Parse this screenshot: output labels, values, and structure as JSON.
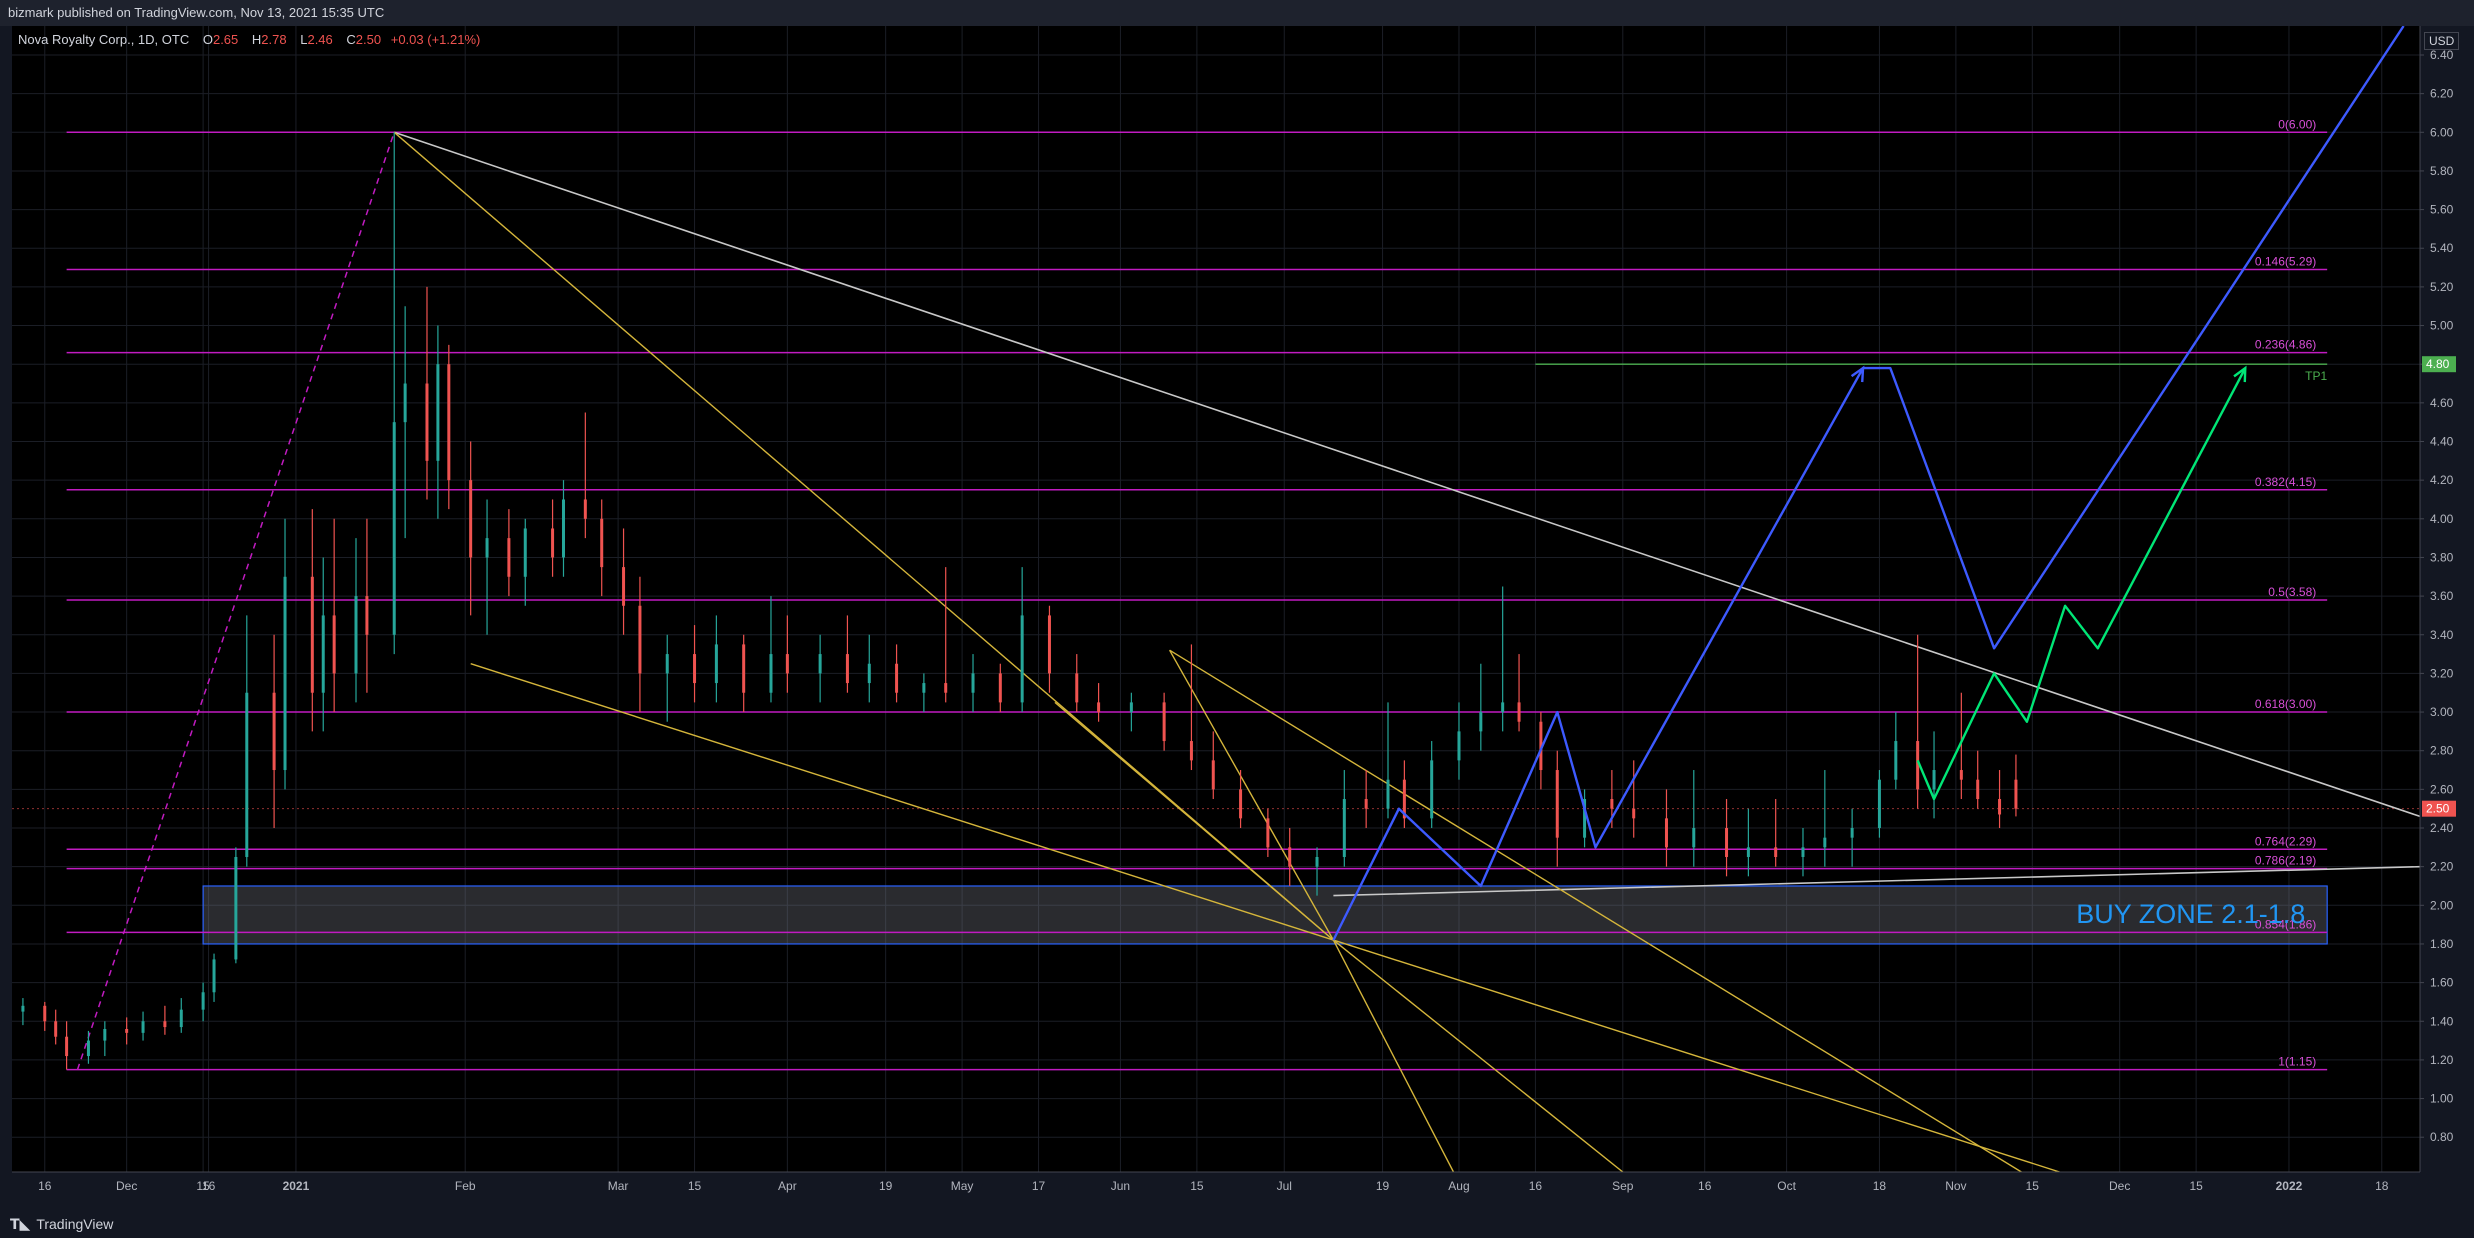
{
  "header": {
    "publish_text": "bizmark published on TradingView.com, Nov 13, 2021 15:35 UTC"
  },
  "legend": {
    "symbol": "Nova Royalty Corp., 1D, OTC",
    "open_label": "O",
    "open": "2.65",
    "high_label": "H",
    "high": "2.78",
    "low_label": "L",
    "low": "2.46",
    "close_label": "C",
    "close": "2.50",
    "change": "+0.03 (+1.21%)"
  },
  "currency": "USD",
  "brand": "TradingView",
  "colors": {
    "up": "#26a69a",
    "down": "#ef5350",
    "fib": "#c11bc1",
    "fib_text": "#d84fd8",
    "buy_zone_text": "#2196f3",
    "tp_green": "#4caf50",
    "blue_path": "#3d5afe",
    "green_path": "#00e676",
    "yellow": "#d4b53b",
    "white_line": "#c8c8c8"
  },
  "chart_data": {
    "type": "candlestick",
    "title": "Nova Royalty Corp., 1D, OTC",
    "y_axis_ticks": [
      6.4,
      6.2,
      6.0,
      5.8,
      5.6,
      5.4,
      5.2,
      5.0,
      4.8,
      4.6,
      4.4,
      4.2,
      4.0,
      3.8,
      3.6,
      3.4,
      3.2,
      3.0,
      2.8,
      2.6,
      2.4,
      2.2,
      2.0,
      1.8,
      1.6,
      1.4,
      1.2,
      1.0,
      0.8
    ],
    "x_axis_ticks": [
      {
        "label": "16",
        "date": "2020-11-16"
      },
      {
        "label": "Dec",
        "date": "2020-12-01"
      },
      {
        "label": "15",
        "date": "2020-12-15"
      },
      {
        "label": "16",
        "date": "2020-12-16"
      },
      {
        "label": "2021",
        "date": "2021-01-01"
      },
      {
        "label": "Feb",
        "date": "2021-02-01"
      },
      {
        "label": "Mar",
        "date": "2021-03-01"
      },
      {
        "label": "15",
        "date": "2021-03-15"
      },
      {
        "label": "Apr",
        "date": "2021-04-01"
      },
      {
        "label": "19",
        "date": "2021-04-19"
      },
      {
        "label": "May",
        "date": "2021-05-03"
      },
      {
        "label": "17",
        "date": "2021-05-17"
      },
      {
        "label": "Jun",
        "date": "2021-06-01"
      },
      {
        "label": "15",
        "date": "2021-06-15"
      },
      {
        "label": "Jul",
        "date": "2021-07-01"
      },
      {
        "label": "19",
        "date": "2021-07-19"
      },
      {
        "label": "Aug",
        "date": "2021-08-02"
      },
      {
        "label": "16",
        "date": "2021-08-16"
      },
      {
        "label": "Sep",
        "date": "2021-09-01"
      },
      {
        "label": "16",
        "date": "2021-09-16"
      },
      {
        "label": "Oct",
        "date": "2021-10-01"
      },
      {
        "label": "18",
        "date": "2021-10-18"
      },
      {
        "label": "Nov",
        "date": "2021-11-01"
      },
      {
        "label": "15",
        "date": "2021-11-15"
      },
      {
        "label": "Dec",
        "date": "2021-12-01"
      },
      {
        "label": "15",
        "date": "2021-12-15"
      },
      {
        "label": "2022",
        "date": "2022-01-01"
      },
      {
        "label": "18",
        "date": "2022-01-18"
      }
    ],
    "x_range": [
      "2020-11-10",
      "2022-01-25"
    ],
    "y_range": [
      0.62,
      6.55
    ],
    "current_price": {
      "label": "2.50",
      "value": 2.5
    },
    "tp_price": {
      "label": "4.80",
      "value": 4.8
    },
    "tp_text": "TP1",
    "fib_levels": [
      {
        "label": "0(6.00)",
        "value": 6.0
      },
      {
        "label": "0.146(5.29)",
        "value": 5.29
      },
      {
        "label": "0.236(4.86)",
        "value": 4.86
      },
      {
        "label": "0.382(4.15)",
        "value": 4.15
      },
      {
        "label": "0.5(3.58)",
        "value": 3.58
      },
      {
        "label": "0.618(3.00)",
        "value": 3.0
      },
      {
        "label": "0.764(2.29)",
        "value": 2.29
      },
      {
        "label": "0.786(2.19)",
        "value": 2.19
      },
      {
        "label": "0.854(1.86)",
        "value": 1.86
      },
      {
        "label": "1(1.15)",
        "value": 1.15
      }
    ],
    "buy_zone": {
      "label": "BUY ZONE 2.1-1.8",
      "top": 2.1,
      "bottom": 1.8,
      "start": "2020-12-15",
      "end": "2022-01-08"
    },
    "candles": [
      [
        "2020-11-12",
        1.45,
        1.52,
        1.38,
        1.48
      ],
      [
        "2020-11-16",
        1.48,
        1.5,
        1.35,
        1.4
      ],
      [
        "2020-11-18",
        1.4,
        1.46,
        1.28,
        1.32
      ],
      [
        "2020-11-20",
        1.32,
        1.4,
        1.15,
        1.22
      ],
      [
        "2020-11-24",
        1.22,
        1.35,
        1.18,
        1.3
      ],
      [
        "2020-11-27",
        1.3,
        1.4,
        1.22,
        1.36
      ],
      [
        "2020-12-01",
        1.36,
        1.42,
        1.28,
        1.34
      ],
      [
        "2020-12-04",
        1.34,
        1.45,
        1.3,
        1.4
      ],
      [
        "2020-12-08",
        1.4,
        1.48,
        1.33,
        1.37
      ],
      [
        "2020-12-11",
        1.37,
        1.52,
        1.34,
        1.46
      ],
      [
        "2020-12-15",
        1.46,
        1.6,
        1.4,
        1.55
      ],
      [
        "2020-12-17",
        1.55,
        1.75,
        1.5,
        1.72
      ],
      [
        "2020-12-21",
        1.72,
        2.3,
        1.7,
        2.25
      ],
      [
        "2020-12-23",
        2.25,
        3.5,
        2.2,
        3.1
      ],
      [
        "2020-12-28",
        3.1,
        3.4,
        2.4,
        2.7
      ],
      [
        "2020-12-30",
        2.7,
        4.0,
        2.6,
        3.7
      ],
      [
        "2021-01-04",
        3.7,
        4.05,
        2.9,
        3.1
      ],
      [
        "2021-01-06",
        3.1,
        3.8,
        2.9,
        3.5
      ],
      [
        "2021-01-08",
        3.5,
        4.0,
        3.0,
        3.2
      ],
      [
        "2021-01-12",
        3.2,
        3.9,
        3.05,
        3.6
      ],
      [
        "2021-01-14",
        3.6,
        4.0,
        3.1,
        3.4
      ],
      [
        "2021-01-19",
        3.4,
        6.0,
        3.3,
        4.5
      ],
      [
        "2021-01-21",
        4.5,
        5.1,
        3.9,
        4.7
      ],
      [
        "2021-01-25",
        4.7,
        5.2,
        4.1,
        4.3
      ],
      [
        "2021-01-27",
        4.3,
        5.0,
        4.0,
        4.8
      ],
      [
        "2021-01-29",
        4.8,
        4.9,
        4.05,
        4.2
      ],
      [
        "2021-02-02",
        4.2,
        4.4,
        3.5,
        3.8
      ],
      [
        "2021-02-05",
        3.8,
        4.1,
        3.4,
        3.9
      ],
      [
        "2021-02-09",
        3.9,
        4.05,
        3.6,
        3.7
      ],
      [
        "2021-02-12",
        3.7,
        4.0,
        3.55,
        3.95
      ],
      [
        "2021-02-17",
        3.95,
        4.1,
        3.7,
        3.8
      ],
      [
        "2021-02-19",
        3.8,
        4.2,
        3.7,
        4.1
      ],
      [
        "2021-02-23",
        4.1,
        4.55,
        3.9,
        4.0
      ],
      [
        "2021-02-26",
        4.0,
        4.1,
        3.6,
        3.75
      ],
      [
        "2021-03-02",
        3.75,
        3.95,
        3.4,
        3.55
      ],
      [
        "2021-03-05",
        3.55,
        3.7,
        3.0,
        3.2
      ],
      [
        "2021-03-10",
        3.2,
        3.4,
        2.95,
        3.3
      ],
      [
        "2021-03-15",
        3.3,
        3.45,
        3.05,
        3.15
      ],
      [
        "2021-03-19",
        3.15,
        3.5,
        3.05,
        3.35
      ],
      [
        "2021-03-24",
        3.35,
        3.4,
        3.0,
        3.1
      ],
      [
        "2021-03-29",
        3.1,
        3.6,
        3.05,
        3.3
      ],
      [
        "2021-04-01",
        3.3,
        3.5,
        3.1,
        3.2
      ],
      [
        "2021-04-07",
        3.2,
        3.4,
        3.05,
        3.3
      ],
      [
        "2021-04-12",
        3.3,
        3.5,
        3.1,
        3.15
      ],
      [
        "2021-04-16",
        3.15,
        3.4,
        3.05,
        3.25
      ],
      [
        "2021-04-21",
        3.25,
        3.35,
        3.05,
        3.1
      ],
      [
        "2021-04-26",
        3.1,
        3.2,
        3.0,
        3.15
      ],
      [
        "2021-04-30",
        3.15,
        3.75,
        3.05,
        3.1
      ],
      [
        "2021-05-05",
        3.1,
        3.3,
        3.0,
        3.2
      ],
      [
        "2021-05-10",
        3.2,
        3.25,
        3.0,
        3.05
      ],
      [
        "2021-05-14",
        3.05,
        3.75,
        3.0,
        3.5
      ],
      [
        "2021-05-19",
        3.5,
        3.55,
        3.1,
        3.2
      ],
      [
        "2021-05-24",
        3.2,
        3.3,
        3.0,
        3.05
      ],
      [
        "2021-05-28",
        3.05,
        3.15,
        2.95,
        3.0
      ],
      [
        "2021-06-03",
        3.0,
        3.1,
        2.9,
        3.05
      ],
      [
        "2021-06-09",
        3.05,
        3.1,
        2.8,
        2.85
      ],
      [
        "2021-06-14",
        2.85,
        3.35,
        2.7,
        2.75
      ],
      [
        "2021-06-18",
        2.75,
        2.9,
        2.55,
        2.6
      ],
      [
        "2021-06-23",
        2.6,
        2.7,
        2.4,
        2.45
      ],
      [
        "2021-06-28",
        2.45,
        2.5,
        2.25,
        2.3
      ],
      [
        "2021-07-02",
        2.3,
        2.4,
        2.1,
        2.2
      ],
      [
        "2021-07-07",
        2.2,
        2.3,
        2.05,
        2.25
      ],
      [
        "2021-07-12",
        2.25,
        2.7,
        2.2,
        2.55
      ],
      [
        "2021-07-16",
        2.55,
        2.7,
        2.4,
        2.5
      ],
      [
        "2021-07-20",
        2.5,
        3.05,
        2.45,
        2.65
      ],
      [
        "2021-07-23",
        2.65,
        2.75,
        2.4,
        2.45
      ],
      [
        "2021-07-28",
        2.45,
        2.85,
        2.4,
        2.75
      ],
      [
        "2021-08-02",
        2.75,
        3.05,
        2.65,
        2.9
      ],
      [
        "2021-08-06",
        2.9,
        3.25,
        2.8,
        3.0
      ],
      [
        "2021-08-10",
        3.0,
        3.65,
        2.9,
        3.05
      ],
      [
        "2021-08-13",
        3.05,
        3.3,
        2.9,
        2.95
      ],
      [
        "2021-08-17",
        2.95,
        3.0,
        2.6,
        2.7
      ],
      [
        "2021-08-20",
        2.7,
        2.8,
        2.2,
        2.35
      ],
      [
        "2021-08-25",
        2.35,
        2.6,
        2.3,
        2.55
      ],
      [
        "2021-08-30",
        2.55,
        2.7,
        2.4,
        2.5
      ],
      [
        "2021-09-03",
        2.5,
        2.75,
        2.35,
        2.45
      ],
      [
        "2021-09-09",
        2.45,
        2.6,
        2.2,
        2.3
      ],
      [
        "2021-09-14",
        2.3,
        2.7,
        2.2,
        2.4
      ],
      [
        "2021-09-20",
        2.4,
        2.55,
        2.15,
        2.25
      ],
      [
        "2021-09-24",
        2.25,
        2.5,
        2.15,
        2.3
      ],
      [
        "2021-09-29",
        2.3,
        2.55,
        2.2,
        2.25
      ],
      [
        "2021-10-04",
        2.25,
        2.4,
        2.15,
        2.3
      ],
      [
        "2021-10-08",
        2.3,
        2.7,
        2.2,
        2.35
      ],
      [
        "2021-10-13",
        2.35,
        2.5,
        2.2,
        2.4
      ],
      [
        "2021-10-18",
        2.4,
        2.7,
        2.35,
        2.65
      ],
      [
        "2021-10-21",
        2.65,
        3.0,
        2.6,
        2.85
      ],
      [
        "2021-10-25",
        2.85,
        3.4,
        2.5,
        2.6
      ],
      [
        "2021-10-28",
        2.6,
        2.9,
        2.45,
        2.7
      ],
      [
        "2021-11-02",
        2.7,
        3.1,
        2.55,
        2.65
      ],
      [
        "2021-11-05",
        2.65,
        2.8,
        2.5,
        2.55
      ],
      [
        "2021-11-09",
        2.55,
        2.7,
        2.4,
        2.47
      ],
      [
        "2021-11-12",
        2.65,
        2.78,
        2.46,
        2.5
      ]
    ],
    "lines": {
      "fib_connector": [
        [
          "2020-11-22",
          1.15
        ],
        [
          "2021-01-19",
          6.0
        ]
      ],
      "white_trend": [
        [
          "2021-01-19",
          6.0
        ],
        [
          "2022-01-25",
          2.46
        ]
      ],
      "white_support": [
        [
          "2021-07-10",
          2.05
        ],
        [
          "2022-01-25",
          2.2
        ]
      ],
      "yellow_1": [
        [
          "2021-01-19",
          6.0
        ],
        [
          "2021-07-10",
          1.82
        ]
      ],
      "yellow_2": [
        [
          "2021-02-02",
          3.25
        ],
        [
          "2021-07-10",
          1.82
        ]
      ],
      "yellow_3": [
        [
          "2021-05-20",
          3.05
        ],
        [
          "2021-07-10",
          1.82
        ]
      ],
      "yellow_4": [
        [
          "2021-06-10",
          3.32
        ],
        [
          "2021-07-10",
          1.82
        ]
      ],
      "yellow_5": [
        [
          "2021-06-10",
          3.32
        ],
        [
          "2021-11-13",
          0.62
        ]
      ],
      "yellow_6": [
        [
          "2021-07-10",
          1.82
        ],
        [
          "2021-08-01",
          0.62
        ]
      ],
      "yellow_7": [
        [
          "2021-07-10",
          1.82
        ],
        [
          "2021-09-01",
          0.62
        ]
      ],
      "yellow_8": [
        [
          "2021-07-10",
          1.82
        ],
        [
          "2021-11-20",
          0.62
        ]
      ],
      "blue_path": [
        [
          "2021-07-10",
          1.82
        ],
        [
          "2021-07-22",
          2.5
        ],
        [
          "2021-08-06",
          2.1
        ],
        [
          "2021-08-20",
          3.0
        ],
        [
          "2021-08-27",
          2.3
        ],
        [
          "2021-10-15",
          4.78
        ],
        [
          "2021-10-20",
          4.78
        ],
        [
          "2021-11-08",
          3.33
        ],
        [
          "2022-01-22",
          6.55
        ]
      ],
      "green_path": [
        [
          "2021-10-25",
          2.75
        ],
        [
          "2021-10-28",
          2.55
        ],
        [
          "2021-11-08",
          3.2
        ],
        [
          "2021-11-14",
          2.95
        ],
        [
          "2021-11-21",
          3.55
        ],
        [
          "2021-11-27",
          3.33
        ],
        [
          "2021-12-24",
          4.78
        ]
      ],
      "green_tp": [
        [
          "2021-08-16",
          4.8
        ],
        [
          "2022-01-08",
          4.8
        ]
      ]
    }
  }
}
